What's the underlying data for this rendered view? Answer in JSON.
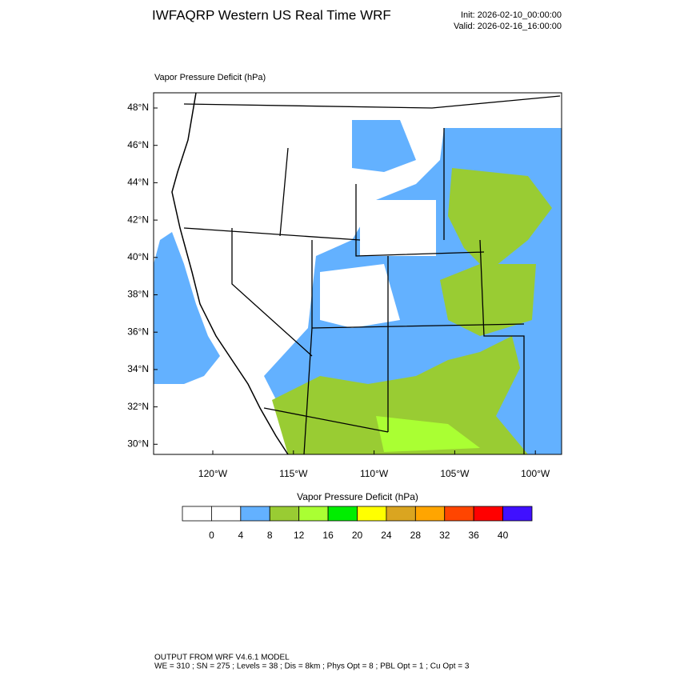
{
  "header": {
    "title": "IWFAQRP Western US Real Time WRF",
    "init": "Init: 2026-02-10_00:00:00",
    "valid": "Valid: 2026-02-16_16:00:00"
  },
  "map": {
    "field_label": "Vapor Pressure Deficit   (hPa)",
    "lat_labels": [
      "48°N",
      "46°N",
      "44°N",
      "42°N",
      "40°N",
      "38°N",
      "36°N",
      "34°N",
      "32°N",
      "30°N"
    ],
    "lon_labels": [
      "120°W",
      "115°W",
      "110°W",
      "105°W",
      "100°W"
    ]
  },
  "colorbar": {
    "title": "Vapor Pressure Deficit  (hPa)",
    "labels": [
      "0",
      "4",
      "8",
      "12",
      "16",
      "20",
      "24",
      "28",
      "32",
      "36",
      "40"
    ],
    "colors": [
      "#ffffff",
      "#ffffff",
      "#63b1ff",
      "#99cc33",
      "#aaff33",
      "#00ee00",
      "#ffff00",
      "#daa520",
      "#ffa500",
      "#ff4500",
      "#ff0000",
      "#4010ff"
    ]
  },
  "footer": {
    "line1": "OUTPUT FROM WRF V4.6.1 MODEL",
    "line2": "WE = 310 ; SN = 275 ; Levels = 38 ; Dis = 8km ; Phys Opt = 8 ; PBL Opt = 1 ; Cu Opt = 3"
  }
}
